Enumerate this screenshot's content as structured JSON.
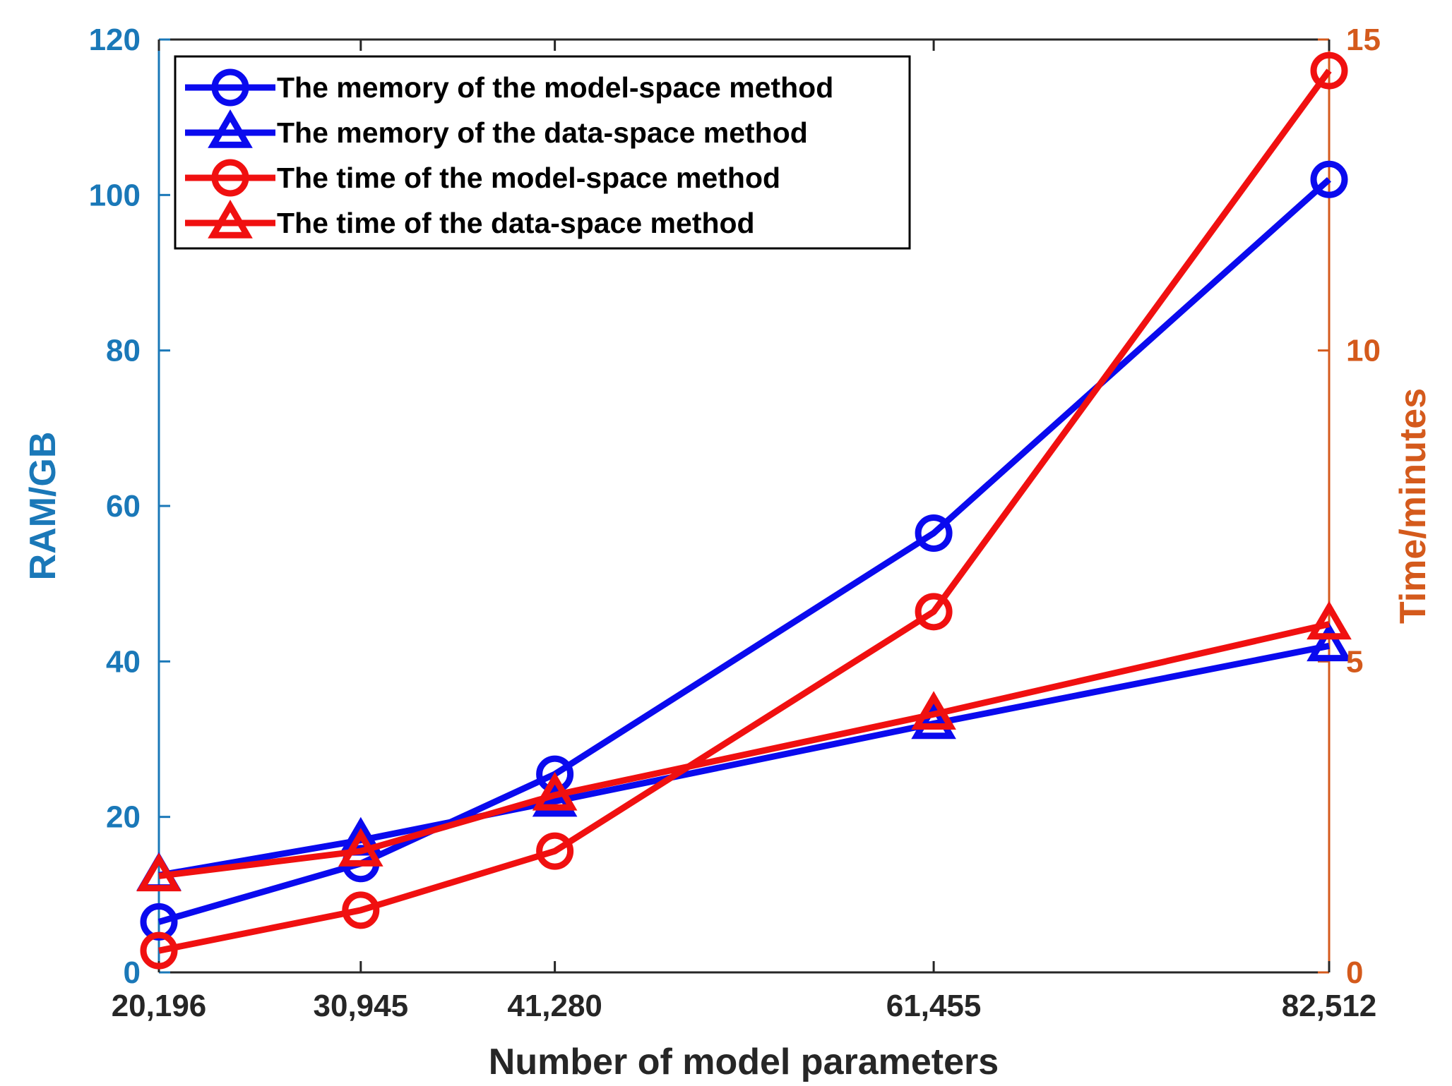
{
  "chart_data": {
    "type": "line",
    "title": "",
    "xlabel": "Number of model parameters",
    "ylabel_left": "RAM/GB",
    "ylabel_right": "Time/minutes",
    "categories": [
      "20,196",
      "30,945",
      "41,280",
      "61,455",
      "82,512"
    ],
    "x": [
      20196,
      30945,
      41280,
      61455,
      82512
    ],
    "xlim": [
      20196,
      82512
    ],
    "ylim_left": [
      0,
      120
    ],
    "ylim_right": [
      0,
      15
    ],
    "yticks_left": [
      "0",
      "20",
      "40",
      "60",
      "80",
      "100",
      "120"
    ],
    "yticks_right": [
      "0",
      "5",
      "10",
      "15"
    ],
    "colors": {
      "left_axis": "#1a78b8",
      "right_axis": "#d45a1c",
      "blue_series": "#0a0aee",
      "red_series": "#f01010"
    },
    "legend_position": "top-left",
    "series": [
      {
        "name": "The memory of the model-space method",
        "axis": "left",
        "marker": "circle",
        "color": "#0a0aee",
        "values": [
          6.5,
          14.0,
          25.5,
          56.5,
          102.0
        ]
      },
      {
        "name": "The memory of the data-space method",
        "axis": "left",
        "marker": "triangle",
        "color": "#0a0aee",
        "values": [
          12.5,
          17.0,
          22.0,
          32.0,
          42.0
        ]
      },
      {
        "name": "The time of the model-space method",
        "axis": "right",
        "marker": "circle",
        "color": "#f01010",
        "values": [
          0.35,
          1.0,
          1.95,
          5.8,
          14.5
        ]
      },
      {
        "name": "The time of the data-space method",
        "axis": "right",
        "marker": "triangle",
        "color": "#f01010",
        "values": [
          1.55,
          1.95,
          2.85,
          4.15,
          5.6
        ]
      }
    ]
  }
}
